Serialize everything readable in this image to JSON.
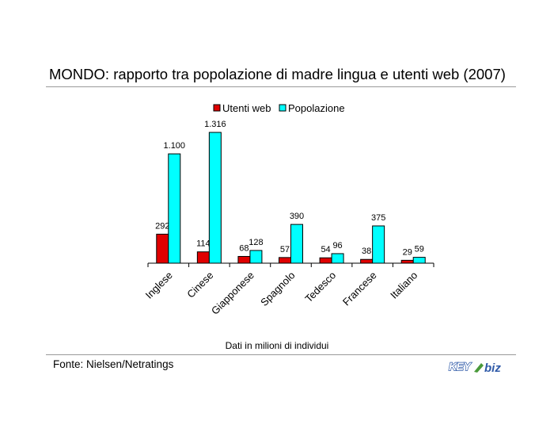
{
  "title": "MONDO: rapporto tra popolazione di madre lingua e utenti web (2007)",
  "note": "Dati in milioni di individui",
  "source": "Fonte: Nielsen/Netratings",
  "logo": {
    "part1": "KEY",
    "part2": "biz",
    "colors": {
      "blue": "#2f5aa8",
      "green": "#4a9a3a"
    }
  },
  "chart_data": {
    "type": "bar",
    "categories": [
      "Inglese",
      "Cinese",
      "Giapponese",
      "Spagnolo",
      "Tedesco",
      "Francese",
      "Italiano"
    ],
    "series": [
      {
        "name": "Utenti web",
        "color": "#e00000",
        "values": [
          292,
          114,
          68,
          57,
          54,
          38,
          29
        ],
        "labels": [
          "292",
          "114",
          "68",
          "57",
          "54",
          "38",
          "29"
        ]
      },
      {
        "name": "Popolazione",
        "color": "#00ffff",
        "values": [
          1100,
          1316,
          128,
          390,
          96,
          375,
          59
        ],
        "labels": [
          "1.100",
          "1.316",
          "128",
          "390",
          "96",
          "375",
          "59"
        ]
      }
    ],
    "ylim": [
      0,
      1316
    ],
    "legend": "top-center",
    "grid": false,
    "xlabel": "",
    "ylabel": ""
  }
}
